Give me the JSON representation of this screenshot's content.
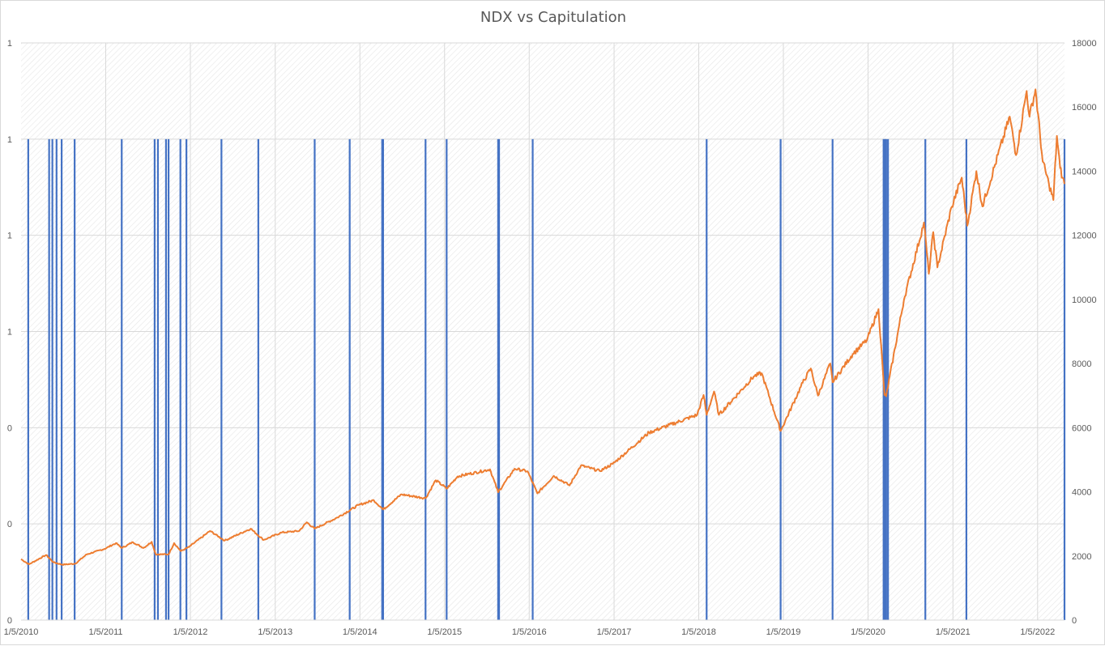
{
  "chart_data": {
    "type": "bar+line",
    "title": "NDX vs Capitulation",
    "x_tick_labels": [
      "1/5/2010",
      "1/5/2011",
      "1/5/2012",
      "1/5/2013",
      "1/5/2014",
      "1/5/2015",
      "1/5/2016",
      "1/5/2017",
      "1/5/2018",
      "1/5/2019",
      "1/5/2020",
      "1/5/2021",
      "1/5/2022"
    ],
    "x_range": [
      "2010-01-05",
      "2022-05-01"
    ],
    "y_left": {
      "ticks": [
        "0",
        "0",
        "0",
        "1",
        "1",
        "1",
        "1"
      ],
      "range": [
        0,
        1.2
      ]
    },
    "y_right": {
      "ticks": [
        "0",
        "2000",
        "4000",
        "6000",
        "8000",
        "10000",
        "12000",
        "14000",
        "16000",
        "18000"
      ],
      "range": [
        0,
        18000
      ]
    },
    "grid": true,
    "plot_background": "diagonal-hatch",
    "series": [
      {
        "kind": "capitulation-bars",
        "color": "#4472C4",
        "value": 1,
        "dates": [
          "2010-02-05",
          "2010-05-06",
          "2010-05-20",
          "2010-06-07",
          "2010-06-29",
          "2010-08-24",
          "2011-03-15",
          "2011-08-04",
          "2011-08-18",
          "2011-09-22",
          "2011-10-03",
          "2011-11-23",
          "2011-12-19",
          "2012-05-18",
          "2012-10-24",
          "2013-06-24",
          "2013-11-22",
          "2014-04-11",
          "2014-04-15",
          "2014-10-15",
          "2015-01-14",
          "2015-08-24",
          "2015-08-28",
          "2016-01-20",
          "2018-02-08",
          "2018-12-24",
          "2019-08-05",
          "2020-03-12",
          "2020-03-16",
          "2020-03-20",
          "2020-03-23",
          "2020-03-31",
          "2020-09-08",
          "2021-03-04",
          "2022-05-09"
        ]
      },
      {
        "kind": "NDX",
        "color": "#ED7D31",
        "axis": "right",
        "points": [
          [
            "2010-01-05",
            1900
          ],
          [
            "2010-02-08",
            1740
          ],
          [
            "2010-04-23",
            2030
          ],
          [
            "2010-05-25",
            1800
          ],
          [
            "2010-07-02",
            1730
          ],
          [
            "2010-08-27",
            1760
          ],
          [
            "2010-10-15",
            2050
          ],
          [
            "2010-12-31",
            2220
          ],
          [
            "2011-02-18",
            2400
          ],
          [
            "2011-03-16",
            2250
          ],
          [
            "2011-05-02",
            2430
          ],
          [
            "2011-06-17",
            2250
          ],
          [
            "2011-07-22",
            2440
          ],
          [
            "2011-08-09",
            2050
          ],
          [
            "2011-10-03",
            2050
          ],
          [
            "2011-10-27",
            2400
          ],
          [
            "2011-11-25",
            2150
          ],
          [
            "2011-12-30",
            2280
          ],
          [
            "2012-03-30",
            2780
          ],
          [
            "2012-06-01",
            2480
          ],
          [
            "2012-09-21",
            2850
          ],
          [
            "2012-11-16",
            2500
          ],
          [
            "2013-01-31",
            2730
          ],
          [
            "2013-04-18",
            2780
          ],
          [
            "2013-05-21",
            3050
          ],
          [
            "2013-06-24",
            2850
          ],
          [
            "2013-09-30",
            3200
          ],
          [
            "2013-12-31",
            3590
          ],
          [
            "2014-03-06",
            3740
          ],
          [
            "2014-04-15",
            3450
          ],
          [
            "2014-07-03",
            3920
          ],
          [
            "2014-10-15",
            3800
          ],
          [
            "2014-11-28",
            4360
          ],
          [
            "2015-01-15",
            4100
          ],
          [
            "2015-03-02",
            4480
          ],
          [
            "2015-07-20",
            4700
          ],
          [
            "2015-08-24",
            3990
          ],
          [
            "2015-11-03",
            4720
          ],
          [
            "2015-12-29",
            4640
          ],
          [
            "2016-02-09",
            3950
          ],
          [
            "2016-04-20",
            4500
          ],
          [
            "2016-06-27",
            4200
          ],
          [
            "2016-08-15",
            4820
          ],
          [
            "2016-11-04",
            4650
          ],
          [
            "2016-12-30",
            4870
          ],
          [
            "2017-06-05",
            5850
          ],
          [
            "2017-12-29",
            6400
          ],
          [
            "2018-01-26",
            7020
          ],
          [
            "2018-02-08",
            6400
          ],
          [
            "2018-03-12",
            7130
          ],
          [
            "2018-04-02",
            6400
          ],
          [
            "2018-08-30",
            7600
          ],
          [
            "2018-10-03",
            7700
          ],
          [
            "2018-12-24",
            5900
          ],
          [
            "2019-03-29",
            7400
          ],
          [
            "2019-05-03",
            7850
          ],
          [
            "2019-06-03",
            7000
          ],
          [
            "2019-07-26",
            8000
          ],
          [
            "2019-08-05",
            7420
          ],
          [
            "2019-10-31",
            8300
          ],
          [
            "2019-12-31",
            8730
          ],
          [
            "2020-02-19",
            9700
          ],
          [
            "2020-03-16",
            7020
          ],
          [
            "2020-03-23",
            6980
          ],
          [
            "2020-06-08",
            10000
          ],
          [
            "2020-09-02",
            12400
          ],
          [
            "2020-09-23",
            10800
          ],
          [
            "2020-10-12",
            12100
          ],
          [
            "2020-10-30",
            11000
          ],
          [
            "2020-12-31",
            12890
          ],
          [
            "2021-02-12",
            13800
          ],
          [
            "2021-03-08",
            12300
          ],
          [
            "2021-04-16",
            14000
          ],
          [
            "2021-05-12",
            12900
          ],
          [
            "2021-09-07",
            15700
          ],
          [
            "2021-10-04",
            14500
          ],
          [
            "2021-11-19",
            16500
          ],
          [
            "2021-12-01",
            15700
          ],
          [
            "2021-12-27",
            16550
          ],
          [
            "2022-01-27",
            14300
          ],
          [
            "2022-02-23",
            13600
          ],
          [
            "2022-03-14",
            13100
          ],
          [
            "2022-03-29",
            15100
          ],
          [
            "2022-04-12",
            14100
          ],
          [
            "2022-04-22",
            13800
          ],
          [
            "2022-05-01",
            13600
          ]
        ]
      }
    ]
  }
}
